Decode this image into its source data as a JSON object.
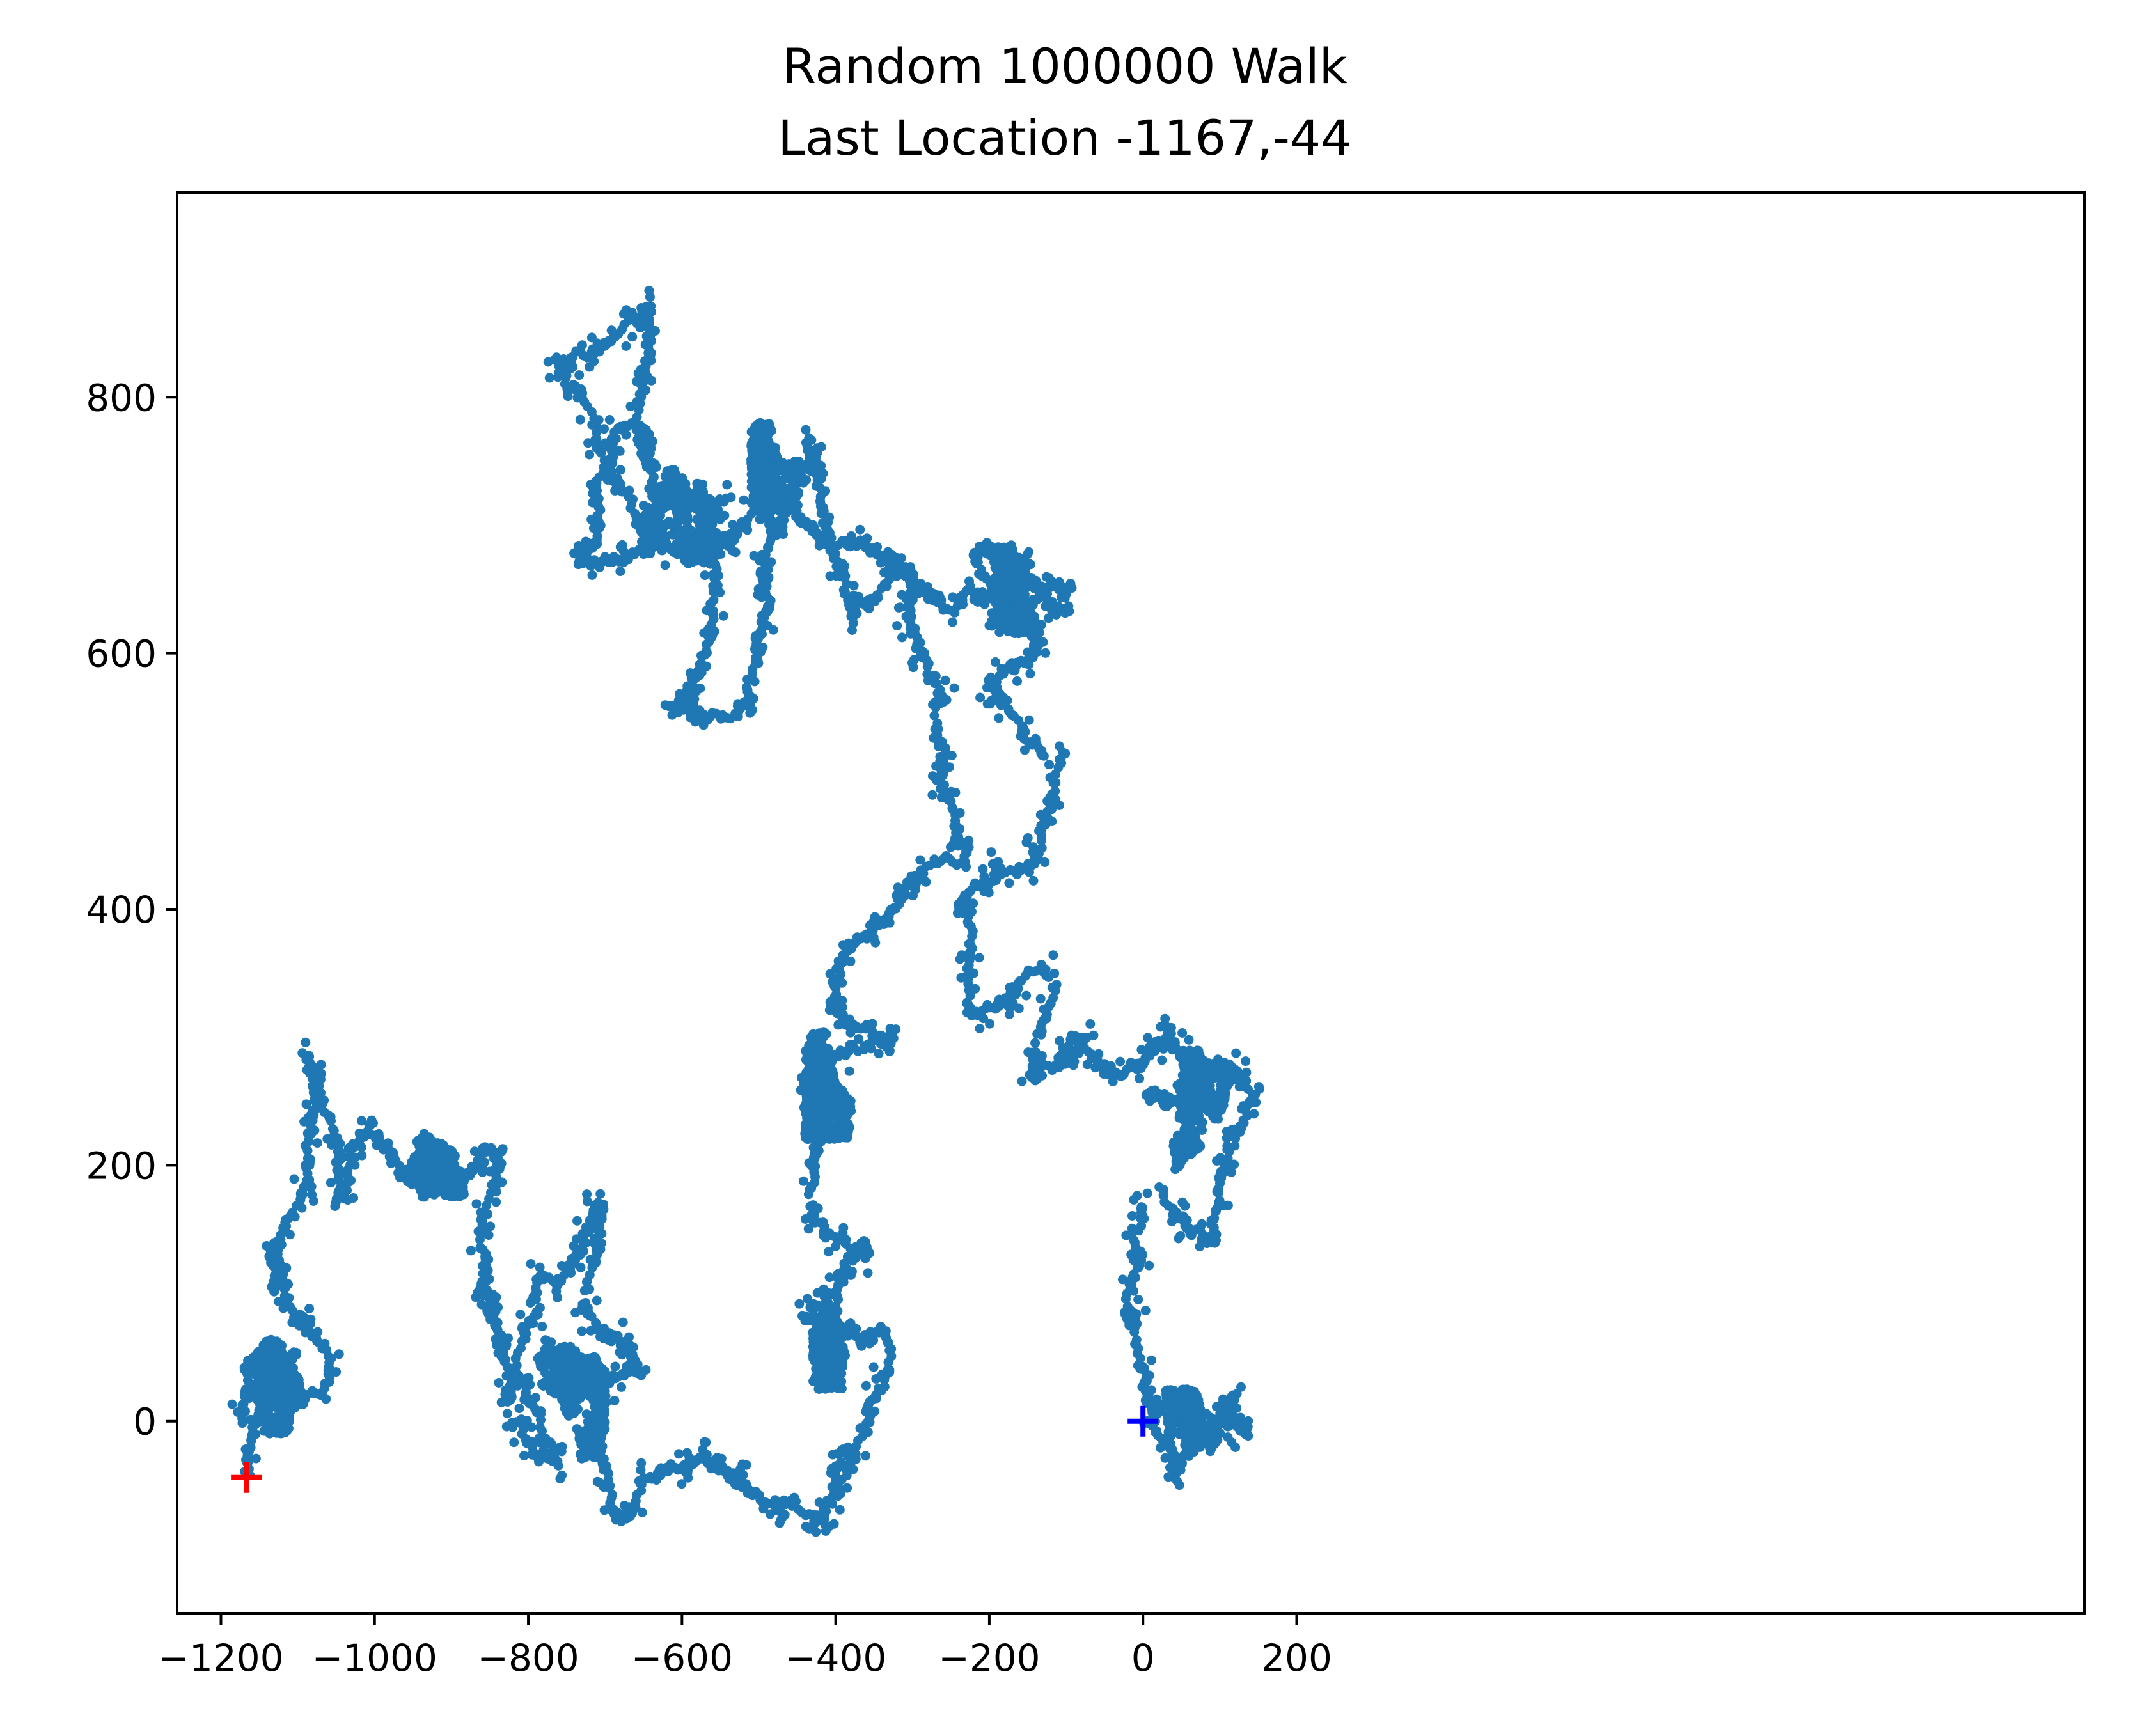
{
  "chart_data": {
    "type": "scatter",
    "title": "Random 1000000 Walk",
    "subtitle": "Last Location -1167,-44",
    "xlabel": "",
    "ylabel": "",
    "xlim": [
      -1257,
      1225
    ],
    "ylim": [
      -150,
      960
    ],
    "x_ticks": [
      -1200,
      -1000,
      -800,
      -600,
      -400,
      -200,
      0,
      200
    ],
    "x_tick_labels": [
      "−1200",
      "−1000",
      "−800",
      "−600",
      "−400",
      "−200",
      "0",
      "200"
    ],
    "y_ticks": [
      0,
      200,
      400,
      600,
      800
    ],
    "y_tick_labels": [
      "0",
      "200",
      "400",
      "600",
      "800"
    ],
    "grid": false,
    "walk_color": "#1f77b4",
    "start_point": {
      "x": 0,
      "y": 0,
      "marker": "+",
      "color": "#0000ff"
    },
    "end_point": {
      "x": -1167,
      "y": -44,
      "marker": "+",
      "color": "#ff0000"
    },
    "path_waypoints": [
      {
        "x": 0,
        "y": 0
      },
      {
        "x": 40,
        "y": -40
      },
      {
        "x": 100,
        "y": 10
      },
      {
        "x": 130,
        "y": -10
      },
      {
        "x": 20,
        "y": 10
      },
      {
        "x": -20,
        "y": 80
      },
      {
        "x": 20,
        "y": 180
      },
      {
        "x": 80,
        "y": 140
      },
      {
        "x": 140,
        "y": 260
      },
      {
        "x": 40,
        "y": 300
      },
      {
        "x": -40,
        "y": 270
      },
      {
        "x": -80,
        "y": 300
      },
      {
        "x": -150,
        "y": 270
      },
      {
        "x": -130,
        "y": 350
      },
      {
        "x": -230,
        "y": 330
      },
      {
        "x": -240,
        "y": 400
      },
      {
        "x": -150,
        "y": 430
      },
      {
        "x": -130,
        "y": 520
      },
      {
        "x": -200,
        "y": 560
      },
      {
        "x": -140,
        "y": 600
      },
      {
        "x": -210,
        "y": 680
      },
      {
        "x": -100,
        "y": 650
      },
      {
        "x": -260,
        "y": 640
      },
      {
        "x": -320,
        "y": 670
      },
      {
        "x": -380,
        "y": 620
      },
      {
        "x": -420,
        "y": 760
      },
      {
        "x": -480,
        "y": 700
      },
      {
        "x": -520,
        "y": 560
      },
      {
        "x": -600,
        "y": 560
      },
      {
        "x": -540,
        "y": 720
      },
      {
        "x": -660,
        "y": 700
      },
      {
        "x": -760,
        "y": 820
      },
      {
        "x": -640,
        "y": 870
      },
      {
        "x": -740,
        "y": 680
      },
      {
        "x": -560,
        "y": 680
      },
      {
        "x": -460,
        "y": 740
      },
      {
        "x": -400,
        "y": 680
      },
      {
        "x": -300,
        "y": 660
      },
      {
        "x": -230,
        "y": 450
      },
      {
        "x": -350,
        "y": 380
      },
      {
        "x": -410,
        "y": 330
      },
      {
        "x": -330,
        "y": 300
      },
      {
        "x": -440,
        "y": 260
      },
      {
        "x": -430,
        "y": 160
      },
      {
        "x": -360,
        "y": 140
      },
      {
        "x": -440,
        "y": 80
      },
      {
        "x": -330,
        "y": 60
      },
      {
        "x": -390,
        "y": -20
      },
      {
        "x": -400,
        "y": -80
      },
      {
        "x": -480,
        "y": -70
      },
      {
        "x": -560,
        "y": -30
      },
      {
        "x": -620,
        "y": -40
      },
      {
        "x": -690,
        "y": -70
      },
      {
        "x": -720,
        "y": 0
      },
      {
        "x": -650,
        "y": 40
      },
      {
        "x": -720,
        "y": 100
      },
      {
        "x": -700,
        "y": 170
      },
      {
        "x": -790,
        "y": 80
      },
      {
        "x": -820,
        "y": 0
      },
      {
        "x": -760,
        "y": -20
      },
      {
        "x": -870,
        "y": 100
      },
      {
        "x": -840,
        "y": 210
      },
      {
        "x": -940,
        "y": 190
      },
      {
        "x": -1000,
        "y": 230
      },
      {
        "x": -1040,
        "y": 170
      },
      {
        "x": -1080,
        "y": 280
      },
      {
        "x": -1090,
        "y": 190
      },
      {
        "x": -1140,
        "y": 130
      },
      {
        "x": -1100,
        "y": 80
      },
      {
        "x": -1060,
        "y": 40
      },
      {
        "x": -1120,
        "y": 10
      },
      {
        "x": -1170,
        "y": 40
      },
      {
        "x": -1160,
        "y": 0
      },
      {
        "x": -1167,
        "y": -44
      }
    ]
  }
}
